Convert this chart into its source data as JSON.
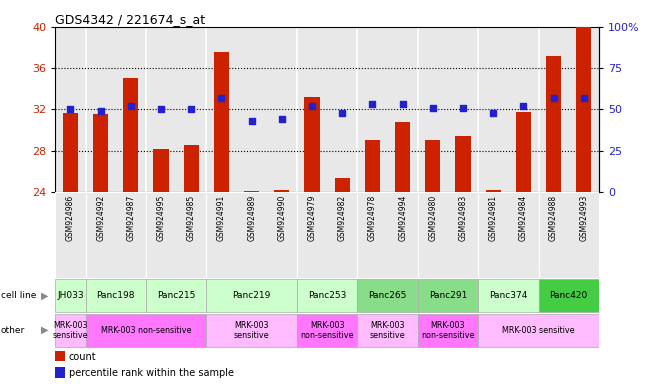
{
  "title": "GDS4342 / 221674_s_at",
  "samples": [
    "GSM924986",
    "GSM924992",
    "GSM924987",
    "GSM924995",
    "GSM924985",
    "GSM924991",
    "GSM924989",
    "GSM924990",
    "GSM924979",
    "GSM924982",
    "GSM924978",
    "GSM924994",
    "GSM924980",
    "GSM924983",
    "GSM924981",
    "GSM924984",
    "GSM924988",
    "GSM924993"
  ],
  "counts": [
    31.7,
    31.6,
    35.0,
    28.2,
    28.6,
    37.6,
    24.1,
    24.2,
    33.2,
    25.4,
    29.0,
    30.8,
    29.0,
    29.4,
    24.2,
    31.8,
    37.2,
    40.0
  ],
  "percentiles": [
    50,
    49,
    52,
    50,
    50,
    57,
    43,
    44,
    52,
    48,
    53,
    53,
    51,
    51,
    48,
    52,
    57,
    57
  ],
  "cell_line_groups": [
    {
      "label": "JH033",
      "start": 0,
      "end": 1,
      "color": "#ccffcc"
    },
    {
      "label": "Panc198",
      "start": 1,
      "end": 3,
      "color": "#ccffcc"
    },
    {
      "label": "Panc215",
      "start": 3,
      "end": 5,
      "color": "#ccffcc"
    },
    {
      "label": "Panc219",
      "start": 5,
      "end": 8,
      "color": "#ccffcc"
    },
    {
      "label": "Panc253",
      "start": 8,
      "end": 10,
      "color": "#ccffcc"
    },
    {
      "label": "Panc265",
      "start": 10,
      "end": 12,
      "color": "#88dd88"
    },
    {
      "label": "Panc291",
      "start": 12,
      "end": 14,
      "color": "#88dd88"
    },
    {
      "label": "Panc374",
      "start": 14,
      "end": 16,
      "color": "#ccffcc"
    },
    {
      "label": "Panc420",
      "start": 16,
      "end": 18,
      "color": "#44cc44"
    }
  ],
  "other_groups": [
    {
      "label": "MRK-003\nsensitive",
      "start": 0,
      "end": 1,
      "color": "#ffbbff"
    },
    {
      "label": "MRK-003 non-sensitive",
      "start": 1,
      "end": 5,
      "color": "#ff77ff"
    },
    {
      "label": "MRK-003\nsensitive",
      "start": 5,
      "end": 8,
      "color": "#ffbbff"
    },
    {
      "label": "MRK-003\nnon-sensitive",
      "start": 8,
      "end": 10,
      "color": "#ff77ff"
    },
    {
      "label": "MRK-003\nsensitive",
      "start": 10,
      "end": 12,
      "color": "#ffbbff"
    },
    {
      "label": "MRK-003\nnon-sensitive",
      "start": 12,
      "end": 14,
      "color": "#ff77ff"
    },
    {
      "label": "MRK-003 sensitive",
      "start": 14,
      "end": 18,
      "color": "#ffbbff"
    }
  ],
  "ylim_left": [
    24,
    40
  ],
  "ylim_right": [
    0,
    100
  ],
  "yticks_left": [
    24,
    28,
    32,
    36,
    40
  ],
  "yticks_right": [
    0,
    25,
    50,
    75,
    100
  ],
  "ytick_labels_right": [
    "0",
    "25",
    "50",
    "75",
    "100%"
  ],
  "bar_color": "#cc2200",
  "dot_color": "#2222cc",
  "tick_color_left": "#cc2200",
  "tick_color_right": "#2222cc",
  "grid_yticks": [
    28,
    32,
    36
  ],
  "col_bg_color": "#e8e8e8",
  "col_border_color": "#ffffff"
}
